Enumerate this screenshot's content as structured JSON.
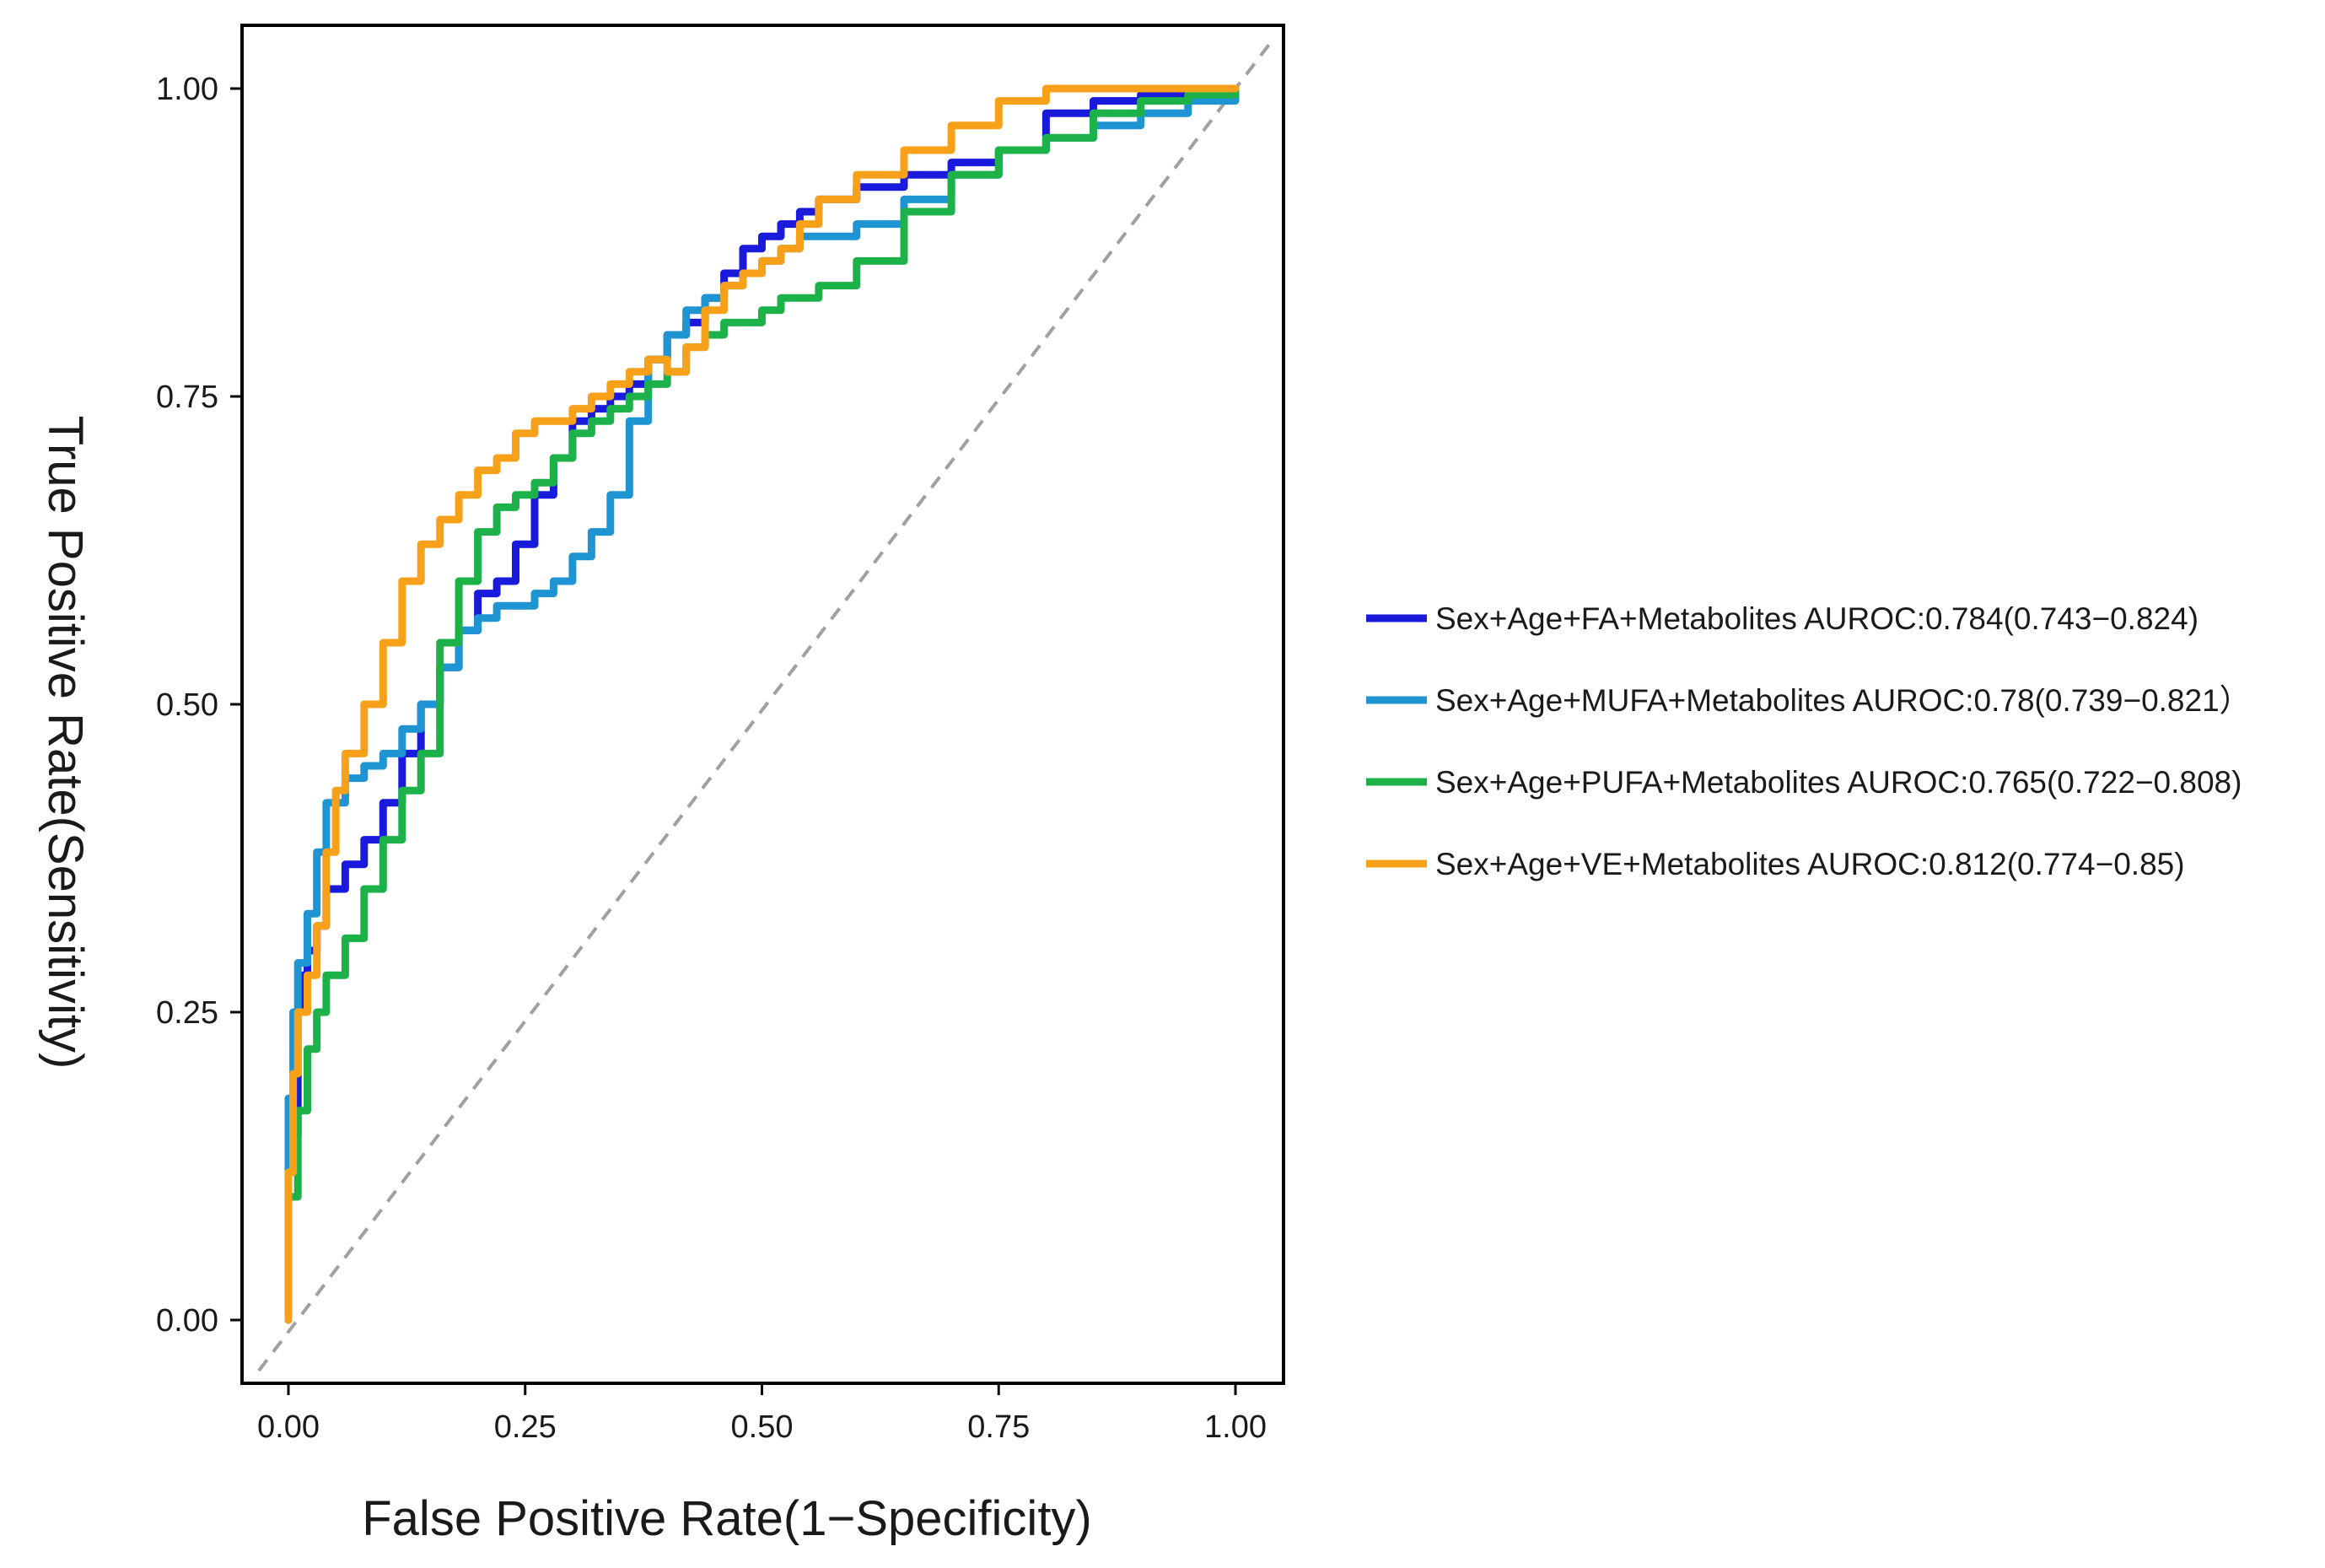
{
  "chart_data": {
    "type": "line",
    "title": "",
    "xlabel": "False Positive Rate(1−Specificity)",
    "ylabel": "True Positive Rate(Sensitivity)",
    "xlim": [
      0,
      1
    ],
    "ylim": [
      0,
      1
    ],
    "xticks": [
      "0.00",
      "0.25",
      "0.50",
      "0.75",
      "1.00"
    ],
    "yticks": [
      "0.00",
      "0.25",
      "0.50",
      "0.75",
      "1.00"
    ],
    "grid": false,
    "legend_position": "right",
    "reference_line": {
      "name": "chance diagonal",
      "color": "#a0a0a0",
      "style": "dashed"
    },
    "series": [
      {
        "name": "Sex+Age+FA+Metabolites AUROC:0.784(0.743−0.824)",
        "color": "#1a1adc",
        "x": [
          0,
          0,
          0.01,
          0.015,
          0.02,
          0.03,
          0.04,
          0.06,
          0.08,
          0.1,
          0.12,
          0.14,
          0.16,
          0.18,
          0.2,
          0.22,
          0.24,
          0.26,
          0.28,
          0.3,
          0.32,
          0.34,
          0.36,
          0.38,
          0.4,
          0.42,
          0.44,
          0.46,
          0.48,
          0.5,
          0.52,
          0.54,
          0.56,
          0.6,
          0.65,
          0.7,
          0.75,
          0.8,
          0.85,
          0.9,
          0.95,
          1.0
        ],
        "y": [
          0,
          0.15,
          0.25,
          0.28,
          0.3,
          0.32,
          0.35,
          0.37,
          0.39,
          0.42,
          0.46,
          0.5,
          0.53,
          0.56,
          0.59,
          0.6,
          0.63,
          0.67,
          0.7,
          0.73,
          0.74,
          0.75,
          0.76,
          0.78,
          0.8,
          0.81,
          0.83,
          0.85,
          0.87,
          0.88,
          0.89,
          0.9,
          0.91,
          0.92,
          0.93,
          0.94,
          0.95,
          0.98,
          0.99,
          0.995,
          1.0,
          1.0
        ]
      },
      {
        "name": "Sex+Age+MUFA+Metabolites AUROC:0.78(0.739−0.821）",
        "color": "#1e95d2",
        "x": [
          0,
          0,
          0.005,
          0.01,
          0.02,
          0.03,
          0.04,
          0.06,
          0.08,
          0.1,
          0.12,
          0.14,
          0.16,
          0.18,
          0.2,
          0.22,
          0.24,
          0.26,
          0.28,
          0.3,
          0.32,
          0.34,
          0.36,
          0.38,
          0.4,
          0.42,
          0.44,
          0.46,
          0.48,
          0.5,
          0.52,
          0.54,
          0.56,
          0.6,
          0.65,
          0.7,
          0.75,
          0.8,
          0.85,
          0.9,
          0.95,
          1.0
        ],
        "y": [
          0.12,
          0.18,
          0.25,
          0.29,
          0.33,
          0.38,
          0.42,
          0.44,
          0.45,
          0.46,
          0.48,
          0.5,
          0.53,
          0.56,
          0.57,
          0.58,
          0.58,
          0.59,
          0.6,
          0.62,
          0.64,
          0.67,
          0.73,
          0.78,
          0.8,
          0.82,
          0.83,
          0.84,
          0.85,
          0.86,
          0.87,
          0.88,
          0.88,
          0.89,
          0.91,
          0.93,
          0.95,
          0.96,
          0.97,
          0.98,
          0.99,
          1.0
        ]
      },
      {
        "name": "Sex+Age+PUFA+Metabolites AUROC:0.765(0.722−0.808)",
        "color": "#1db149",
        "x": [
          0,
          0.01,
          0.02,
          0.03,
          0.04,
          0.06,
          0.08,
          0.1,
          0.12,
          0.14,
          0.16,
          0.18,
          0.2,
          0.22,
          0.24,
          0.26,
          0.28,
          0.3,
          0.32,
          0.34,
          0.36,
          0.38,
          0.4,
          0.42,
          0.44,
          0.46,
          0.48,
          0.5,
          0.52,
          0.54,
          0.56,
          0.6,
          0.65,
          0.7,
          0.75,
          0.8,
          0.85,
          0.9,
          0.95,
          1.0
        ],
        "y": [
          0.1,
          0.17,
          0.22,
          0.25,
          0.28,
          0.31,
          0.35,
          0.39,
          0.43,
          0.46,
          0.55,
          0.6,
          0.64,
          0.66,
          0.67,
          0.68,
          0.7,
          0.72,
          0.73,
          0.74,
          0.75,
          0.76,
          0.77,
          0.79,
          0.8,
          0.81,
          0.81,
          0.82,
          0.83,
          0.83,
          0.84,
          0.86,
          0.9,
          0.93,
          0.95,
          0.96,
          0.98,
          0.99,
          0.995,
          1.0
        ]
      },
      {
        "name": "Sex+Age+VE+Metabolites AUROC:0.812(0.774−0.85)",
        "color": "#f7a11a",
        "x": [
          0,
          0,
          0.005,
          0.01,
          0.02,
          0.03,
          0.04,
          0.05,
          0.06,
          0.08,
          0.1,
          0.12,
          0.14,
          0.16,
          0.18,
          0.2,
          0.22,
          0.24,
          0.26,
          0.28,
          0.3,
          0.32,
          0.34,
          0.36,
          0.38,
          0.4,
          0.42,
          0.44,
          0.46,
          0.48,
          0.5,
          0.52,
          0.54,
          0.56,
          0.6,
          0.65,
          0.7,
          0.75,
          0.8,
          0.85,
          0.9,
          0.95,
          1.0
        ],
        "y": [
          0,
          0.12,
          0.2,
          0.25,
          0.28,
          0.32,
          0.38,
          0.43,
          0.46,
          0.5,
          0.55,
          0.6,
          0.63,
          0.65,
          0.67,
          0.69,
          0.7,
          0.72,
          0.73,
          0.73,
          0.74,
          0.75,
          0.76,
          0.77,
          0.78,
          0.77,
          0.79,
          0.82,
          0.84,
          0.85,
          0.86,
          0.87,
          0.89,
          0.91,
          0.93,
          0.95,
          0.97,
          0.99,
          1.0,
          1.0,
          1.0,
          1.0,
          1.0
        ]
      }
    ]
  }
}
